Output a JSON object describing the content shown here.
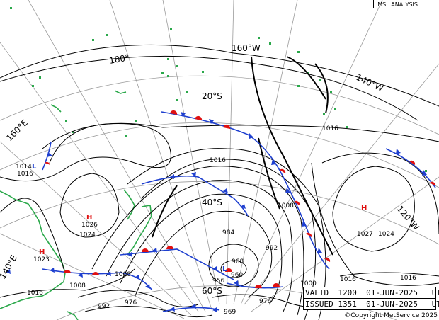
{
  "header": {
    "title": "MSL ANALYSIS"
  },
  "info_panel": {
    "valid": "VALID  1200  01-JUN-2025   UTC",
    "issued": "ISSUED 1351  01-JUN-2025   UTC"
  },
  "copyright": "©Copyright MetService 2025",
  "graticule_labels": {
    "lon_180": "180°",
    "lon_160w": "160°W",
    "lon_140w": "140°W",
    "lon_120w": "120°W",
    "lon_160e": "160°E",
    "lon_140e": "140°E",
    "lat_20s": "20°S",
    "lat_40s": "40°S",
    "lat_60s": "60°S"
  },
  "pressure_centres": {
    "low_west": {
      "symbol": "L",
      "value": "1014"
    },
    "high_tasman": {
      "symbol": "H",
      "value": "1026"
    },
    "high_australia": {
      "symbol": "H",
      "value": "1023"
    },
    "high_east": {
      "symbol": "H",
      "value": "1027"
    },
    "low_south": {
      "symbol": "L",
      "value": "960"
    }
  },
  "isobar_labels": {
    "a": "1016",
    "b": "1016",
    "c": "1016",
    "d": "1024",
    "e": "1008",
    "f": "984",
    "g": "968",
    "h": "992",
    "i": "1000",
    "j": "1008",
    "k": "1016",
    "l": "956",
    "m": "976",
    "n": "992",
    "o": "1000",
    "p": "1016",
    "q": "976",
    "r": "969",
    "s": "1024",
    "t": "1016",
    "u": "1016"
  },
  "colors": {
    "isobar": "#000000",
    "graticule": "#9a9a9a",
    "coast": "#2aa84a",
    "cold_front": "#1e3fcf",
    "warm_front": "#e01010",
    "high": "#e01010",
    "low": "#1e3fcf"
  }
}
